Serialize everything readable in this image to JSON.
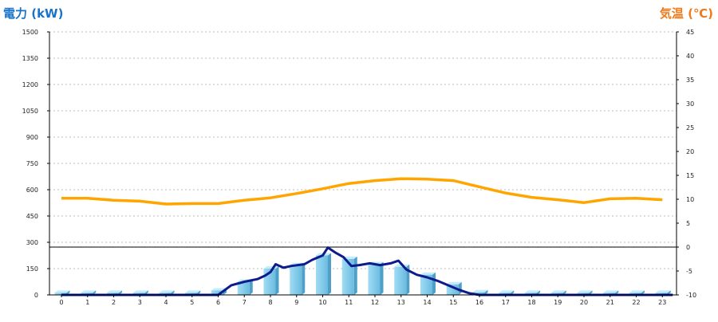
{
  "chart_data": {
    "type": "bar+line",
    "title": "",
    "left_axis": {
      "label": "電力 (kW)",
      "min": 0,
      "max": 1500,
      "ticks": [
        0,
        150,
        300,
        450,
        600,
        750,
        900,
        1050,
        1200,
        1350,
        1500
      ],
      "color": "#1a73c9"
    },
    "right_axis": {
      "label": "気温 (℃)",
      "min": -10,
      "max": 45,
      "ticks": [
        -10,
        -5,
        0,
        5,
        10,
        15,
        20,
        25,
        30,
        35,
        40,
        45
      ],
      "color": "#f07a1a"
    },
    "x_axis": {
      "categories": [
        "0",
        "1",
        "2",
        "3",
        "4",
        "5",
        "6",
        "7",
        "8",
        "9",
        "10",
        "11",
        "12",
        "13",
        "14",
        "15",
        "16",
        "17",
        "18",
        "19",
        "20",
        "21",
        "22",
        "23"
      ]
    },
    "reference_line": {
      "axis": "right",
      "value": 0
    },
    "grid": "horizontal-dotted",
    "series": [
      {
        "type": "bar",
        "axis": "left",
        "color": "#87ceeb",
        "values": [
          12,
          12,
          12,
          12,
          12,
          12,
          25,
          75,
          150,
          170,
          225,
          205,
          175,
          160,
          115,
          60,
          15,
          12,
          12,
          12,
          12,
          12,
          12,
          12
        ]
      },
      {
        "type": "line",
        "axis": "left",
        "color": "#0d1b8c",
        "points": [
          [
            0,
            0
          ],
          [
            5.6,
            0
          ],
          [
            6.0,
            0
          ],
          [
            6.5,
            55
          ],
          [
            7.0,
            75
          ],
          [
            7.5,
            90
          ],
          [
            7.8,
            110
          ],
          [
            8.0,
            130
          ],
          [
            8.2,
            175
          ],
          [
            8.5,
            155
          ],
          [
            8.8,
            165
          ],
          [
            9.3,
            175
          ],
          [
            9.6,
            200
          ],
          [
            10.0,
            225
          ],
          [
            10.2,
            270
          ],
          [
            10.5,
            240
          ],
          [
            10.8,
            215
          ],
          [
            11.1,
            165
          ],
          [
            11.4,
            170
          ],
          [
            11.8,
            180
          ],
          [
            12.2,
            170
          ],
          [
            12.6,
            180
          ],
          [
            12.9,
            195
          ],
          [
            13.2,
            145
          ],
          [
            13.6,
            115
          ],
          [
            14.0,
            100
          ],
          [
            14.4,
            80
          ],
          [
            14.8,
            55
          ],
          [
            15.2,
            30
          ],
          [
            15.6,
            10
          ],
          [
            16.0,
            0
          ],
          [
            23.4,
            0
          ]
        ]
      },
      {
        "type": "line",
        "axis": "right",
        "color": "#ffa500",
        "values": [
          10.2,
          10.2,
          9.8,
          9.6,
          9.0,
          9.1,
          9.1,
          9.8,
          10.3,
          11.2,
          12.2,
          13.3,
          13.9,
          14.3,
          14.2,
          13.9,
          12.6,
          11.3,
          10.4,
          9.9,
          9.3,
          10.1,
          10.2,
          9.9
        ]
      }
    ]
  }
}
